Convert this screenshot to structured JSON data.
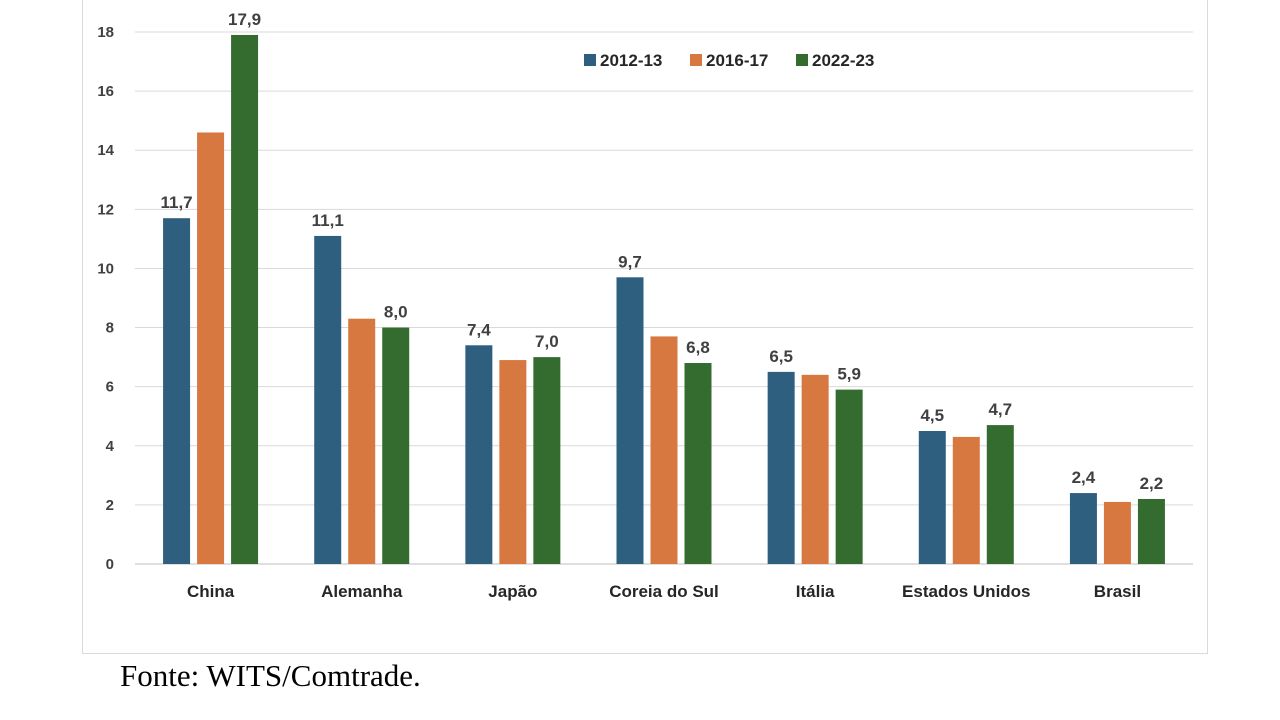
{
  "source_note": "Fonte: WITS/Comtrade.",
  "chart_data": {
    "type": "bar",
    "categories": [
      "China",
      "Alemanha",
      "Japão",
      "Coreia do Sul",
      "Itália",
      "Estados Unidos",
      "Brasil"
    ],
    "series": [
      {
        "name": "2012-13",
        "color": "#2e5f7f",
        "values": [
          11.7,
          11.1,
          7.4,
          9.7,
          6.5,
          4.5,
          2.4
        ]
      },
      {
        "name": "2016-17",
        "color": "#d77840",
        "values": [
          14.6,
          8.3,
          6.9,
          7.7,
          6.4,
          4.3,
          2.1
        ]
      },
      {
        "name": "2022-23",
        "color": "#346c2f",
        "values": [
          17.9,
          8.0,
          7.0,
          6.8,
          5.9,
          4.7,
          2.2
        ]
      }
    ],
    "data_labels": [
      {
        "category": "China",
        "series": "2012-13",
        "text": "11,7"
      },
      {
        "category": "China",
        "series": "2022-23",
        "text": "17,9"
      },
      {
        "category": "Alemanha",
        "series": "2012-13",
        "text": "11,1"
      },
      {
        "category": "Alemanha",
        "series": "2022-23",
        "text": "8,0"
      },
      {
        "category": "Japão",
        "series": "2012-13",
        "text": "7,4"
      },
      {
        "category": "Japão",
        "series": "2022-23",
        "text": "7,0"
      },
      {
        "category": "Coreia do Sul",
        "series": "2012-13",
        "text": "9,7"
      },
      {
        "category": "Coreia do Sul",
        "series": "2022-23",
        "text": "6,8"
      },
      {
        "category": "Itália",
        "series": "2012-13",
        "text": "6,5"
      },
      {
        "category": "Itália",
        "series": "2022-23",
        "text": "5,9"
      },
      {
        "category": "Estados Unidos",
        "series": "2012-13",
        "text": "4,5"
      },
      {
        "category": "Estados Unidos",
        "series": "2022-23",
        "text": "4,7"
      },
      {
        "category": "Brasil",
        "series": "2012-13",
        "text": "2,4"
      },
      {
        "category": "Brasil",
        "series": "2022-23",
        "text": "2,2"
      }
    ],
    "ylim": [
      0,
      18
    ],
    "yticks": [
      0,
      2,
      4,
      6,
      8,
      10,
      12,
      14,
      16,
      18
    ],
    "grid": true,
    "legend_position": "top-right"
  }
}
